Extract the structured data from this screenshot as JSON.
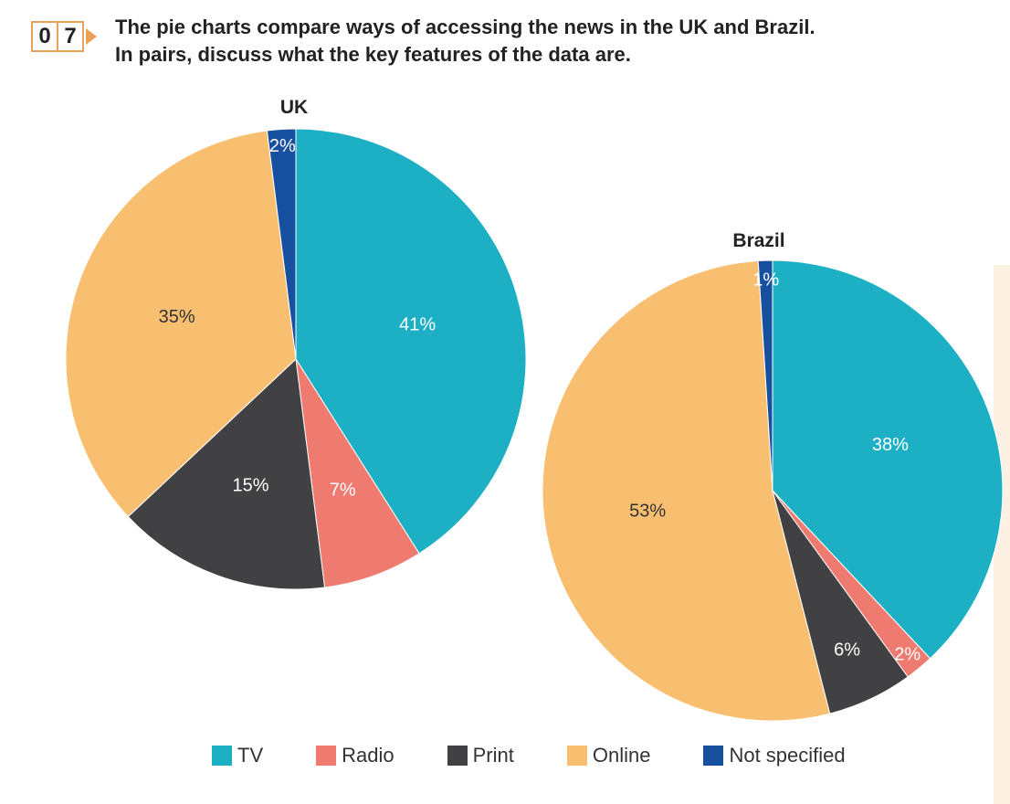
{
  "exercise": {
    "number_digits": [
      "0",
      "7"
    ]
  },
  "instructions": {
    "line1": "The pie charts compare ways of accessing the news in the UK and Brazil.",
    "line2": "In pairs, discuss what the key features of the data are."
  },
  "colors": {
    "TV": "#1db0c5",
    "Radio": "#ef7a70",
    "Print": "#414143",
    "Online": "#f9bf70",
    "Not specified": "#1850a0"
  },
  "chart_data": [
    {
      "type": "pie",
      "title": "UK",
      "slices": [
        {
          "label": "TV",
          "value": 41,
          "text": "41%"
        },
        {
          "label": "Radio",
          "value": 7,
          "text": "7%"
        },
        {
          "label": "Print",
          "value": 15,
          "text": "15%"
        },
        {
          "label": "Online",
          "value": 35,
          "text": "35%"
        },
        {
          "label": "Not specified",
          "value": 2,
          "text": "2%"
        }
      ]
    },
    {
      "type": "pie",
      "title": "Brazil",
      "slices": [
        {
          "label": "TV",
          "value": 38,
          "text": "38%"
        },
        {
          "label": "Radio",
          "value": 2,
          "text": "2%"
        },
        {
          "label": "Print",
          "value": 6,
          "text": "6%"
        },
        {
          "label": "Online",
          "value": 53,
          "text": "53%"
        },
        {
          "label": "Not specified",
          "value": 1,
          "text": "1%"
        }
      ]
    }
  ],
  "legend": {
    "items": [
      {
        "label": "TV",
        "color": "#1db0c5"
      },
      {
        "label": "Radio",
        "color": "#ef7a70"
      },
      {
        "label": "Print",
        "color": "#414143"
      },
      {
        "label": "Online",
        "color": "#f9bf70"
      },
      {
        "label": "Not specified",
        "color": "#1850a0"
      }
    ]
  }
}
